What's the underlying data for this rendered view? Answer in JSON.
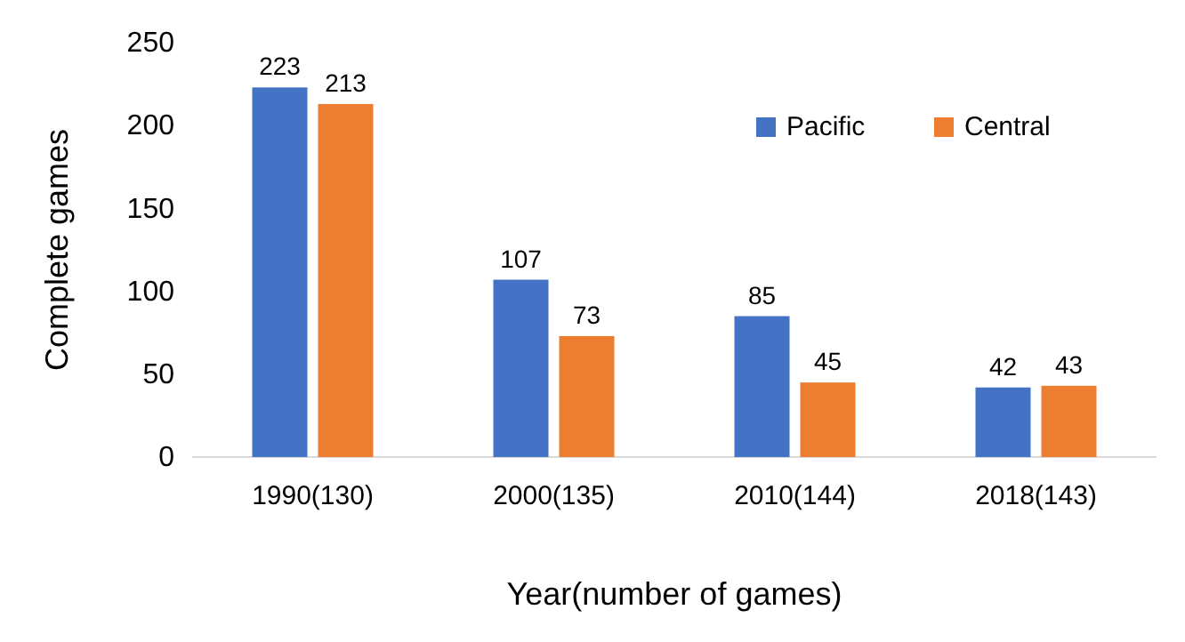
{
  "chart_data": {
    "type": "bar",
    "xlabel": "Year(number of games)",
    "ylabel": "Complete games",
    "categories": [
      "1990(130)",
      "2000(135)",
      "2010(144)",
      "2018(143)"
    ],
    "series": [
      {
        "name": "Pacific",
        "color": "#4472c4",
        "values": [
          223,
          107,
          85,
          42
        ]
      },
      {
        "name": "Central",
        "color": "#ed7d31",
        "values": [
          213,
          73,
          45,
          43
        ]
      }
    ],
    "ylim": [
      0,
      250
    ],
    "yticks": [
      0,
      50,
      100,
      150,
      200,
      250
    ],
    "data_labels": true,
    "legend": "top right",
    "grid": false
  }
}
